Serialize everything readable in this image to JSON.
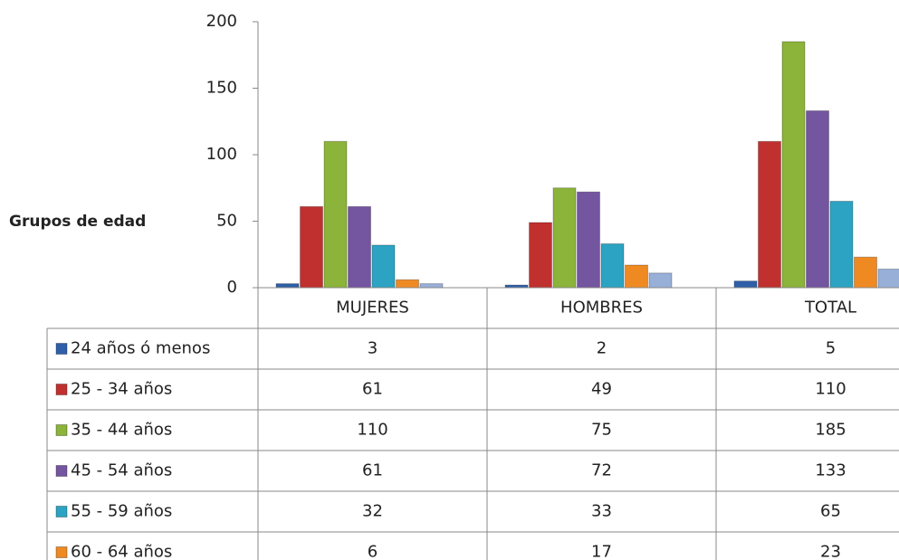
{
  "chart_data": {
    "type": "bar",
    "y_axis_label": "Grupos de edad",
    "categories": [
      "MUJERES",
      "HOMBRES",
      "TOTAL"
    ],
    "series": [
      {
        "name": "24 años ó menos",
        "color": "#2e5fa8",
        "values": [
          3,
          2,
          5
        ]
      },
      {
        "name": "25 - 34 años",
        "color": "#c0302e",
        "values": [
          61,
          49,
          110
        ]
      },
      {
        "name": "35 - 44 años",
        "color": "#8cb33a",
        "values": [
          110,
          75,
          185
        ]
      },
      {
        "name": "45 - 54 años",
        "color": "#7455a0",
        "values": [
          61,
          72,
          133
        ]
      },
      {
        "name": "55 - 59 años",
        "color": "#2ca3c2",
        "values": [
          32,
          33,
          65
        ]
      },
      {
        "name": "60 - 64 años",
        "color": "#ef8a23",
        "values": [
          6,
          17,
          23
        ]
      },
      {
        "name": null,
        "color": "#98afd8",
        "values": [
          3,
          11,
          14
        ]
      }
    ],
    "ylim": [
      0,
      200
    ],
    "yticks": [
      0,
      50,
      100,
      150,
      200
    ]
  }
}
